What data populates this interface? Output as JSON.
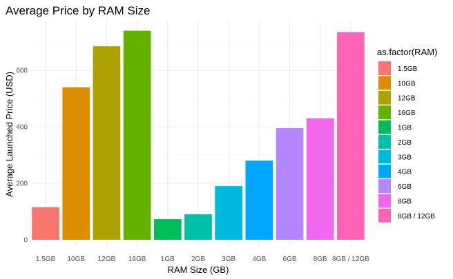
{
  "chart_data": {
    "type": "bar",
    "title": "Average Price by RAM Size",
    "xlabel": "RAM Size (GB)",
    "ylabel": "Average Launched Price (USD)",
    "categories": [
      "1.5GB",
      "10GB",
      "12GB",
      "16GB",
      "1GB",
      "2GB",
      "3GB",
      "4GB",
      "6GB",
      "8GB",
      "8GB / 12GB"
    ],
    "values": [
      115,
      540,
      685,
      740,
      73,
      90,
      190,
      280,
      395,
      430,
      735
    ],
    "colors": [
      "#F8766D",
      "#DB8E00",
      "#AEA200",
      "#64B200",
      "#00BD5C",
      "#00C1A7",
      "#00BADE",
      "#00A6FF",
      "#B385FF",
      "#EF67EB",
      "#FF63B6"
    ],
    "ylim": [
      0,
      770
    ],
    "yticks": [
      0,
      200,
      400,
      600
    ],
    "grid": true,
    "legend": {
      "title": "as.factor(RAM)",
      "position": "right",
      "entries": [
        "1.5GB",
        "10GB",
        "12GB",
        "16GB",
        "1GB",
        "2GB",
        "3GB",
        "4GB",
        "6GB",
        "8GB",
        "8GB / 12GB"
      ]
    }
  }
}
